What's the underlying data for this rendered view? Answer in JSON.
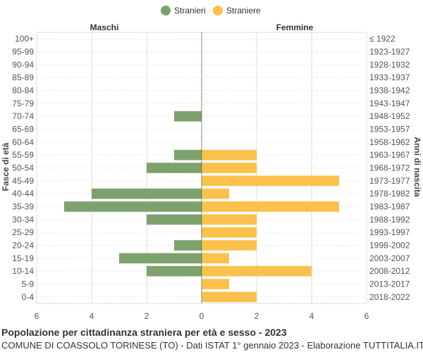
{
  "chart_data": {
    "type": "bar",
    "orientation": "horizontal-population-pyramid",
    "title": "Popolazione per cittadinanza straniera per età e sesso - 2023",
    "subtitle": "COMUNE DI COASSOLO TORINESE (TO) - Dati ISTAT 1° gennaio 2023 - Elaborazione TUTTITALIA.IT",
    "left_header": "Maschi",
    "right_header": "Femmine",
    "ylabel_left": "Fasce di età",
    "ylabel_right": "Anni di nascita",
    "legend": [
      {
        "name": "Stranieri",
        "color": "#7ea26d"
      },
      {
        "name": "Straniere",
        "color": "#fcc14c"
      }
    ],
    "legend_placement": "top-center",
    "xlim": [
      -6,
      6
    ],
    "xticks": [
      {
        "value": -6,
        "label": "6"
      },
      {
        "value": -4,
        "label": "4"
      },
      {
        "value": -2,
        "label": "2"
      },
      {
        "value": 0,
        "label": "0"
      },
      {
        "value": 2,
        "label": "2"
      },
      {
        "value": 4,
        "label": "4"
      },
      {
        "value": 6,
        "label": "6"
      }
    ],
    "grid": true,
    "categories": [
      "100+",
      "95-99",
      "90-94",
      "85-89",
      "80-84",
      "75-79",
      "70-74",
      "65-69",
      "60-64",
      "55-59",
      "50-54",
      "45-49",
      "40-44",
      "35-39",
      "30-34",
      "25-29",
      "20-24",
      "15-19",
      "10-14",
      "5-9",
      "0-4"
    ],
    "birth_years": [
      "≤ 1922",
      "1923-1927",
      "1928-1932",
      "1933-1937",
      "1938-1942",
      "1943-1947",
      "1948-1952",
      "1953-1957",
      "1958-1962",
      "1963-1967",
      "1968-1972",
      "1973-1977",
      "1978-1982",
      "1983-1987",
      "1988-1992",
      "1993-1997",
      "1998-2002",
      "2003-2007",
      "2008-2012",
      "2013-2017",
      "2018-2022"
    ],
    "series": [
      {
        "name": "Stranieri",
        "values": [
          0,
          0,
          0,
          0,
          0,
          0,
          1,
          0,
          0,
          1,
          2,
          0,
          4,
          5,
          2,
          0,
          1,
          3,
          2,
          0,
          0
        ]
      },
      {
        "name": "Straniere",
        "values": [
          0,
          0,
          0,
          0,
          0,
          0,
          0,
          0,
          0,
          2,
          2,
          5,
          1,
          5,
          2,
          2,
          2,
          1,
          4,
          1,
          2
        ]
      }
    ]
  }
}
